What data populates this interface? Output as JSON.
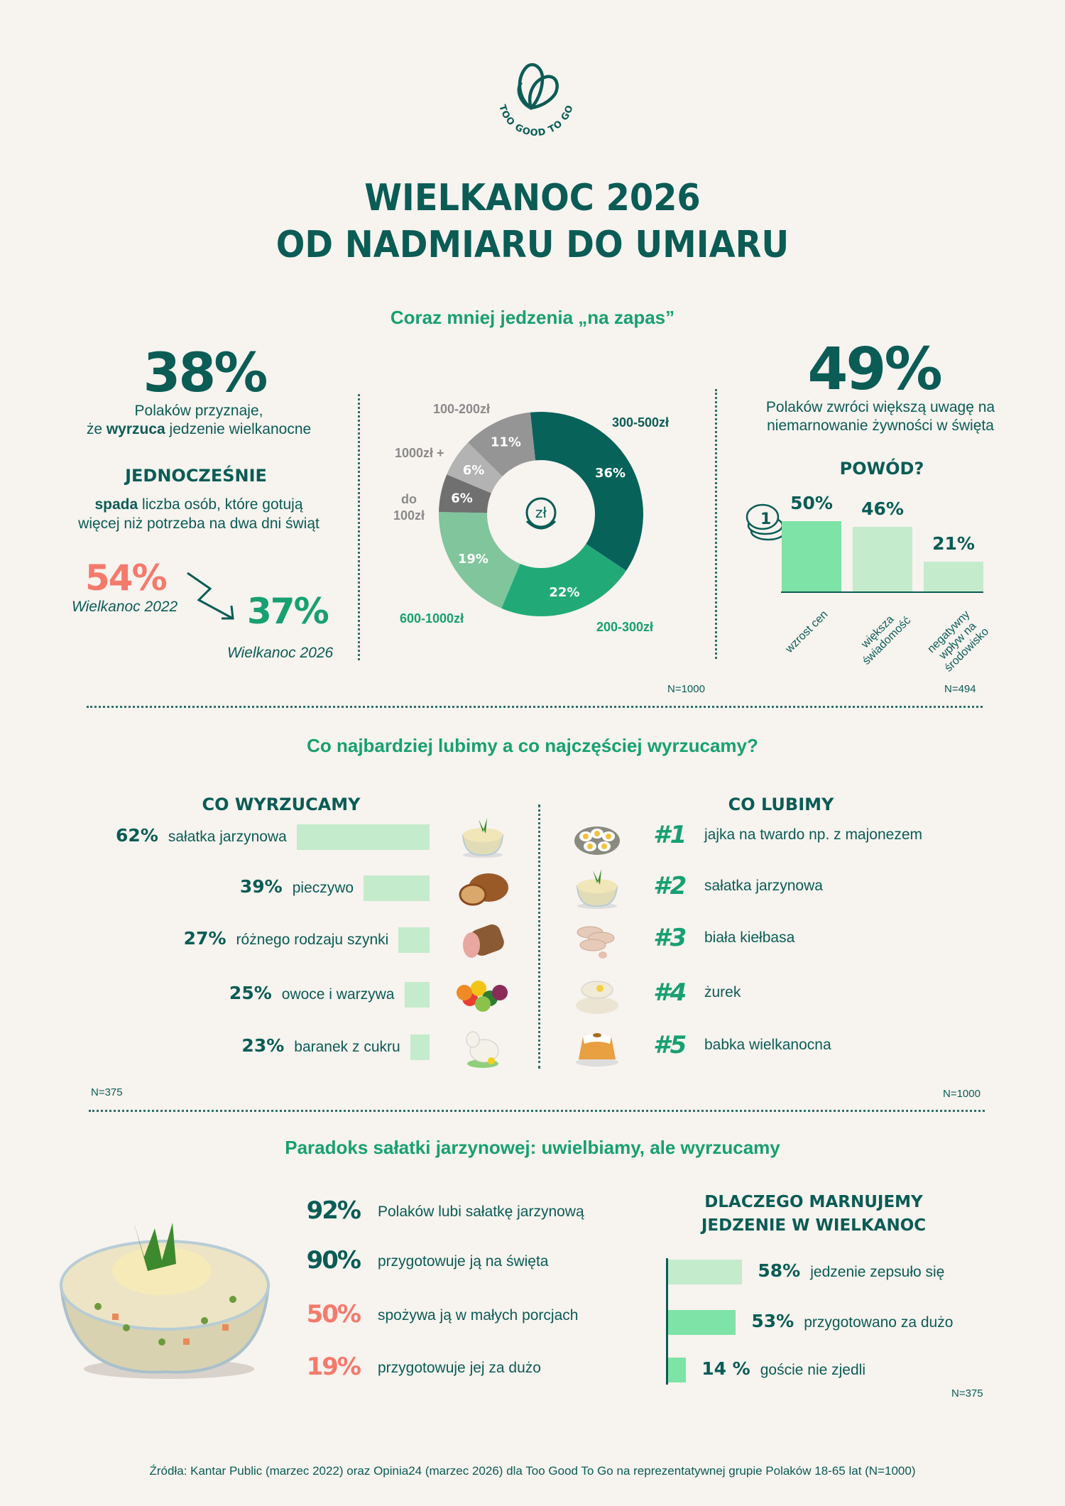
{
  "logo": {
    "text": "TOO GOOD TO GO"
  },
  "header": {
    "title_line1": "WIELKANOC 2026",
    "title_line2": "OD NADMIARU DO UMIARU"
  },
  "colors": {
    "dark": "#0a5c55",
    "green": "#17a072",
    "salmon": "#f47a6c",
    "bar_light": "#c4ebcb",
    "bar_mid": "#7ee3a6",
    "background": "#f7f3ef"
  },
  "section1": {
    "title": "Coraz mniej jedzenia „na zapas”",
    "left": {
      "stat": "38%",
      "line1": "Polaków przyznaje,",
      "line2_pre": "że ",
      "line2_bold": "wyrzuca",
      "line2_post": " jedzenie wielkanocne",
      "subheading": "JEDNOCZEŚNIE",
      "desc1_bold": "spada",
      "desc1_post": " liczba osób, które gotują",
      "desc2": "więcej niż potrzeba na dwa dni świąt",
      "before_value": "54%",
      "before_label": "Wielkanoc 2022",
      "after_value": "37%",
      "after_label": "Wielkanoc 2026"
    },
    "donut_sample": "N=1000",
    "center_icon": "zloty-coins-icon",
    "right": {
      "stat": "49%",
      "line1": "Polaków zwróci większą uwagę na",
      "line2": "niemarnowanie żywności w święta",
      "subheading": "POWÓD?",
      "icon": "coins-icon",
      "sample": "N=494"
    }
  },
  "section2": {
    "title": "Co najbardziej lubimy a co najczęściej wyrzucamy?",
    "left_heading": "CO WYRZUCAMY",
    "right_heading": "CO LUBIMY",
    "left_sample": "N=375",
    "right_sample": "N=1000",
    "liked": [
      {
        "rank": "#1",
        "label": "jajka na twardo np. z majonezem",
        "icon": "stuffed-eggs-icon"
      },
      {
        "rank": "#2",
        "label": "sałatka jarzynowa",
        "icon": "salad-bowl-icon"
      },
      {
        "rank": "#3",
        "label": "biała kiełbasa",
        "icon": "white-sausage-icon"
      },
      {
        "rank": "#4",
        "label": "żurek",
        "icon": "soup-bowl-icon"
      },
      {
        "rank": "#5",
        "label": "babka wielkanocna",
        "icon": "bundt-cake-icon"
      }
    ],
    "thrown_icons": [
      "salad-bowl-icon",
      "bread-icon",
      "ham-icon",
      "fruit-vegetables-icon",
      "sugar-lamb-icon"
    ]
  },
  "section3": {
    "title": "Paradoks sałatki jarzynowej: uwielbiamy, ale wyrzucamy",
    "image": "vegetable-salad-bowl",
    "stats": [
      {
        "value": "92%",
        "label": "Polaków lubi sałatkę jarzynową",
        "color": "#0a5c55"
      },
      {
        "value": "90%",
        "label": "przygotowuje ją na święta",
        "color": "#0a5c55"
      },
      {
        "value": "50%",
        "label": "spożywa ją w małych porcjach",
        "color": "#f47a6c"
      },
      {
        "value": "19%",
        "label": "przygotowuje jej za dużo",
        "color": "#f47a6c"
      }
    ],
    "why_heading1": "DLACZEGO MARNUJEMY",
    "why_heading2": "JEDZENIE W WIELKANOC",
    "sample": "N=375"
  },
  "footer": {
    "source": "Źródła: Kantar Public (marzec 2022) oraz Opinia24 (marzec 2026) dla Too Good To Go na reprezentatywnej grupie Polaków 18-65 lat (N=1000)"
  },
  "chart_data": [
    {
      "type": "pie",
      "variant": "donut",
      "categories": [
        "300-500zł",
        "200-300zł",
        "600-1000zł",
        "do 100zł",
        "1000zł +",
        "100-200zł"
      ],
      "values": [
        36,
        22,
        19,
        6,
        6,
        11
      ],
      "labels": [
        "36%",
        "22%",
        "19%",
        "6%",
        "6%",
        "11%"
      ],
      "colors": [
        "#07625a",
        "#21aa78",
        "#80c59c",
        "#707070",
        "#b3b3b3",
        "#959595"
      ],
      "label_colors": [
        "#0a5c55",
        "#17a072",
        "#17a072",
        "#8a8a8a",
        "#8a8a8a",
        "#8a8a8a"
      ]
    },
    {
      "type": "bar",
      "categories": [
        "wzrost cen",
        "większa świadomość",
        "negatywny wpływ na środowisko"
      ],
      "values": [
        50,
        46,
        21
      ],
      "labels": [
        "50%",
        "46%",
        "21%"
      ],
      "colors": [
        "#7ee3a6",
        "#c4ebcb",
        "#c4ebcb"
      ]
    },
    {
      "type": "bar",
      "orientation": "horizontal",
      "categories": [
        "sałatka jarzynowa",
        "pieczywo",
        "różnego rodzaju szynki",
        "owoce i warzywa",
        "baranek z cukru"
      ],
      "values": [
        62,
        39,
        27,
        25,
        23
      ],
      "labels": [
        "62%",
        "39%",
        "27%",
        "25%",
        "23%"
      ]
    },
    {
      "type": "bar",
      "orientation": "horizontal",
      "categories": [
        "jedzenie zepsuło się",
        "przygotowano za dużo",
        "goście nie zjedli"
      ],
      "values": [
        58,
        53,
        14
      ],
      "labels": [
        "58%",
        "53%",
        "14 %"
      ],
      "colors": [
        "#c4ebcb",
        "#7ee3a6",
        "#7ee3a6"
      ]
    }
  ]
}
